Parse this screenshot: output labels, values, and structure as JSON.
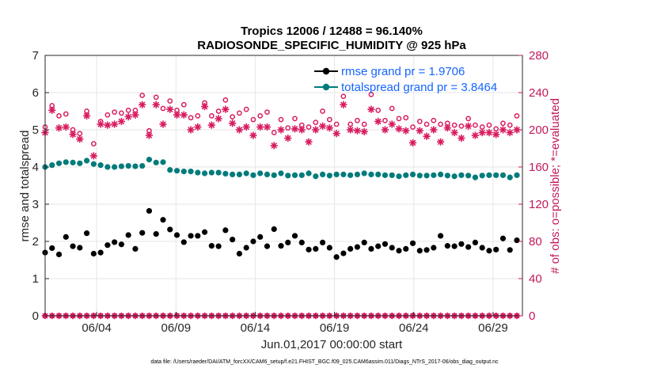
{
  "chart_data": {
    "type": "scatter",
    "title_line1": "Tropics 12006 / 12488 = 96.140%",
    "title_line2": "RADIOSONDE_SPECIFIC_HUMIDITY @ 925 hPa",
    "xlabel": "Jun.01,2017 00:00:00 start",
    "ylabel_left": "rmse and totalspread",
    "ylabel_right": "# of obs: o=possible; *=evaluated",
    "left_ylim": [
      0,
      7
    ],
    "left_yticks": [
      "0",
      "1",
      "2",
      "3",
      "4",
      "5",
      "6",
      "7"
    ],
    "right_ylim": [
      0,
      280
    ],
    "right_yticks": [
      "0",
      "40",
      "80",
      "120",
      "160",
      "200",
      "240",
      "280"
    ],
    "xlim": [
      1.0,
      31.1
    ],
    "xticks": [
      {
        "day": 4.25,
        "label": "06/04"
      },
      {
        "day": 9.25,
        "label": "06/09"
      },
      {
        "day": 14.25,
        "label": "06/14"
      },
      {
        "day": 19.25,
        "label": "06/19"
      },
      {
        "day": 24.25,
        "label": "06/24"
      },
      {
        "day": 29.25,
        "label": "06/29"
      }
    ],
    "grid": true,
    "legend": [
      {
        "label": "rmse grand pr = 1.9706",
        "color": "#000000"
      },
      {
        "label": "totalspread grand pr = 3.8464",
        "color": "#007b7b"
      }
    ],
    "footnote": "data file: /Users/raeder/DAI/ATM_forcXX/CAM6_setup/f.e21.FHIST_BGC.f09_025.CAM6assim.011/Diags_NTrS_2017-06/obs_diag_output.nc",
    "series": [
      {
        "name": "rmse",
        "axis": "left",
        "color": "#000000",
        "values": [
          1.7,
          1.82,
          1.65,
          2.12,
          1.87,
          1.83,
          2.22,
          1.67,
          1.7,
          1.9,
          1.98,
          1.92,
          2.17,
          1.8,
          2.23,
          2.82,
          2.2,
          2.58,
          2.32,
          2.17,
          1.98,
          2.15,
          2.15,
          2.25,
          1.88,
          1.87,
          2.3,
          2.05,
          1.67,
          1.83,
          2.0,
          2.12,
          1.87,
          2.33,
          1.88,
          1.97,
          2.15,
          1.97,
          1.78,
          1.8,
          1.97,
          1.83,
          1.58,
          1.68,
          1.8,
          1.85,
          1.97,
          1.8,
          1.87,
          1.93,
          1.83,
          1.75,
          1.8,
          1.95,
          1.75,
          1.77,
          1.83,
          2.15,
          1.88,
          1.87,
          1.93,
          1.85,
          1.97,
          1.83,
          1.75,
          1.78,
          2.08,
          1.77,
          2.03
        ]
      },
      {
        "name": "totalspread",
        "axis": "left",
        "color": "#007b7b",
        "values": [
          4.0,
          4.05,
          4.1,
          4.13,
          4.12,
          4.1,
          4.17,
          4.08,
          4.05,
          4.0,
          4.0,
          4.02,
          4.03,
          4.02,
          4.03,
          4.2,
          4.12,
          4.13,
          3.92,
          3.9,
          3.88,
          3.88,
          3.85,
          3.83,
          3.85,
          3.85,
          3.82,
          3.8,
          3.8,
          3.83,
          3.78,
          3.83,
          3.8,
          3.78,
          3.83,
          3.77,
          3.78,
          3.78,
          3.83,
          3.75,
          3.8,
          3.77,
          3.8,
          3.8,
          3.78,
          3.8,
          3.83,
          3.8,
          3.8,
          3.78,
          3.78,
          3.75,
          3.78,
          3.8,
          3.77,
          3.77,
          3.78,
          3.8,
          3.77,
          3.75,
          3.78,
          3.77,
          3.72,
          3.77,
          3.78,
          3.78,
          3.78,
          3.72,
          3.78
        ]
      },
      {
        "name": "possible",
        "axis": "right",
        "color": "#d81b60",
        "marker": "o",
        "values": [
          203,
          226,
          215,
          217,
          200,
          196,
          220,
          185,
          209,
          216,
          219,
          218,
          221,
          221,
          237,
          199,
          235,
          223,
          231,
          221,
          227,
          213,
          215,
          229,
          215,
          220,
          232,
          214,
          218,
          222,
          211,
          215,
          219,
          197,
          211,
          202,
          212,
          205,
          203,
          208,
          220,
          211,
          206,
          236,
          206,
          210,
          206,
          238,
          221,
          210,
          223,
          212,
          213,
          203,
          209,
          206,
          210,
          206,
          207,
          205,
          204,
          212,
          205,
          203,
          205,
          201,
          207,
          205,
          215
        ]
      },
      {
        "name": "evaluated",
        "axis": "right",
        "color": "#d81b60",
        "marker": "*",
        "values": [
          197,
          221,
          202,
          203,
          195,
          190,
          215,
          172,
          206,
          205,
          206,
          209,
          214,
          216,
          227,
          194,
          227,
          206,
          222,
          216,
          216,
          200,
          203,
          225,
          205,
          212,
          222,
          207,
          200,
          203,
          194,
          203,
          203,
          183,
          200,
          191,
          201,
          200,
          187,
          200,
          204,
          202,
          196,
          227,
          200,
          199,
          198,
          222,
          209,
          200,
          206,
          201,
          199,
          186,
          199,
          193,
          200,
          187,
          202,
          197,
          191,
          204,
          194,
          197,
          197,
          195,
          200,
          197,
          200
        ]
      },
      {
        "name": "unused",
        "axis": "right",
        "color": "#d81b60",
        "marker": "baseline",
        "values": [
          0,
          0,
          0,
          0,
          0,
          0,
          0,
          0,
          0,
          0,
          0,
          0,
          0,
          0,
          0,
          0,
          0,
          0,
          0,
          0,
          0,
          0,
          0,
          0,
          0,
          0,
          0,
          0,
          0,
          0,
          0,
          0,
          0,
          0,
          0,
          0,
          0,
          0,
          0,
          0,
          0,
          0,
          0,
          0,
          0,
          0,
          0,
          0,
          0,
          0,
          0,
          0,
          0,
          0,
          0,
          0,
          0,
          0,
          0,
          0,
          0,
          0,
          0,
          0,
          0,
          0,
          0,
          0,
          0
        ]
      }
    ],
    "time_step_days": 0.4375,
    "time_start_day": 1.0
  }
}
